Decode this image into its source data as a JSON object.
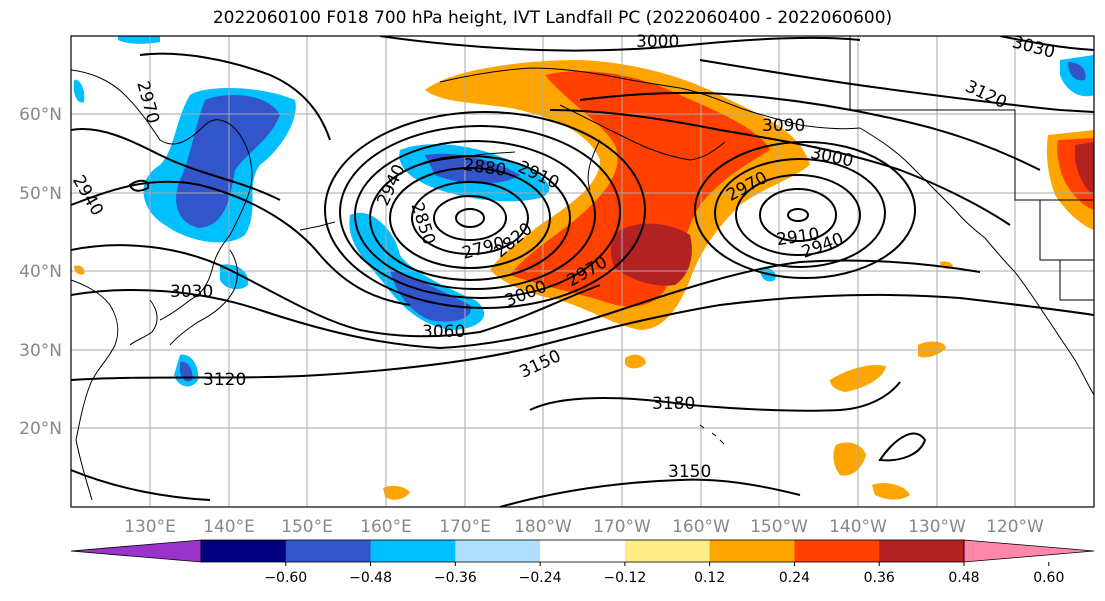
{
  "title": "2022060100 F018 700 hPa height, IVT Landfall PC (2022060400 - 2022060600)",
  "map": {
    "lat_labels": [
      "60°N",
      "50°N",
      "40°N",
      "30°N",
      "20°N"
    ],
    "lon_labels": [
      "130°E",
      "140°E",
      "150°E",
      "160°E",
      "170°E",
      "180°W",
      "170°W",
      "160°W",
      "150°W",
      "140°W",
      "130°W",
      "120°W"
    ],
    "contour_labels": [
      "3000",
      "3030",
      "2970",
      "3090",
      "3120",
      "3000",
      "2940",
      "2940",
      "2880",
      "2910",
      "2970",
      "2850",
      "2790",
      "2820",
      "2910",
      "2940",
      "3030",
      "3000",
      "2970",
      "3060",
      "3150",
      "3120",
      "3180",
      "3150"
    ]
  },
  "colorbar": {
    "colors": [
      "#9933cc",
      "#000080",
      "#3355cc",
      "#00bfff",
      "#b0e0ff",
      "#ffffff",
      "#ffee88",
      "#ffa500",
      "#ff4000",
      "#b22222",
      "#ff88aa"
    ],
    "tick_labels": [
      "−0.60",
      "−0.48",
      "−0.36",
      "−0.24",
      "−0.12",
      "0.12",
      "0.24",
      "0.36",
      "0.48",
      "0.60"
    ]
  },
  "colors": {
    "grid": "#aaaaaa",
    "contour": "#000000",
    "coast": "#000000"
  }
}
